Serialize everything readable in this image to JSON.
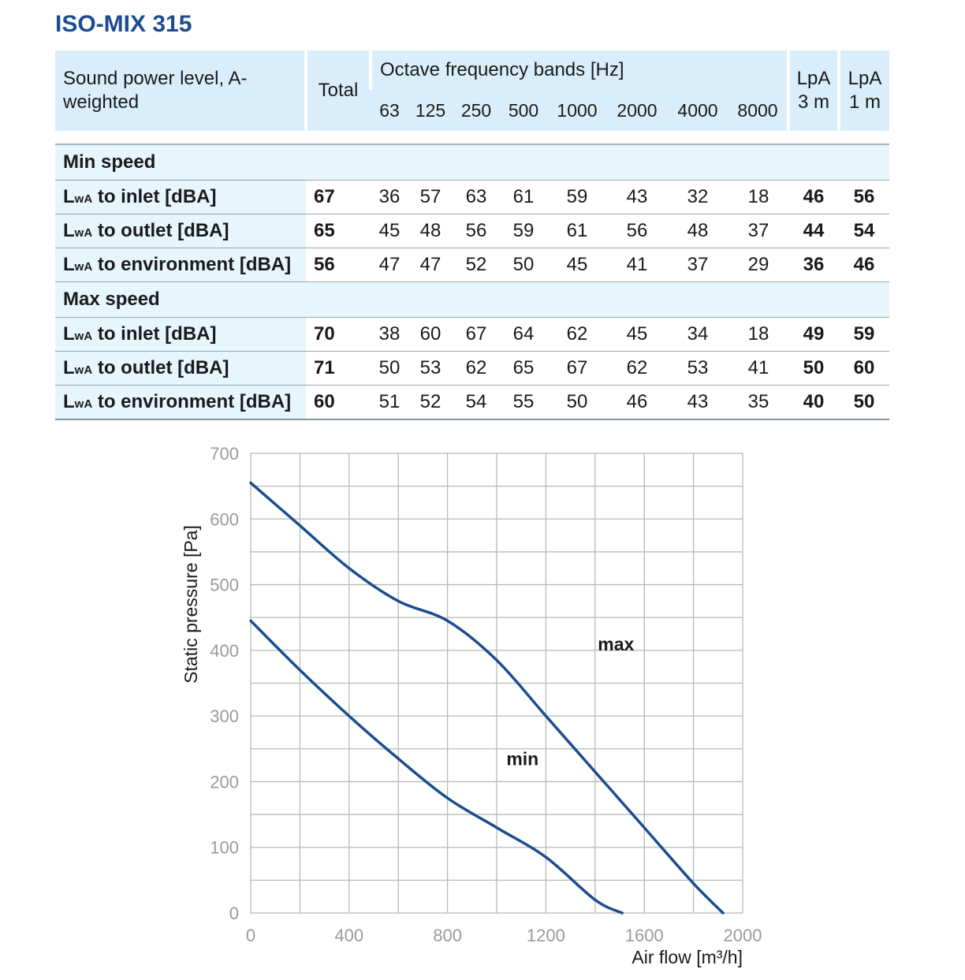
{
  "title": "ISO-MIX 315",
  "table": {
    "header_label": "Sound power level, A-weighted",
    "total_label": "Total",
    "bands_label": "Octave frequency bands [Hz]",
    "bands": [
      "63",
      "125",
      "250",
      "500",
      "1000",
      "2000",
      "4000",
      "8000"
    ],
    "lpa3_top": "LpA",
    "lpa3_bottom": "3 m",
    "lpa1_top": "LpA",
    "lpa1_bottom": "1 m",
    "groups": [
      {
        "name": "Min speed",
        "rows": [
          {
            "prefix": "L",
            "sub": "wA",
            "label": " to inlet [dBA]",
            "total": "67",
            "bands": [
              "36",
              "57",
              "63",
              "61",
              "59",
              "43",
              "32",
              "18"
            ],
            "lpa3": "46",
            "lpa1": "56"
          },
          {
            "prefix": "L",
            "sub": "wA",
            "label": " to outlet [dBA]",
            "total": "65",
            "bands": [
              "45",
              "48",
              "56",
              "59",
              "61",
              "56",
              "48",
              "37"
            ],
            "lpa3": "44",
            "lpa1": "54"
          },
          {
            "prefix": "L",
            "sub": "wA",
            "label": " to environment [dBA]",
            "total": "56",
            "bands": [
              "47",
              "47",
              "52",
              "50",
              "45",
              "41",
              "37",
              "29"
            ],
            "lpa3": "36",
            "lpa1": "46"
          }
        ]
      },
      {
        "name": "Max speed",
        "rows": [
          {
            "prefix": "L",
            "sub": "wA",
            "label": " to inlet [dBA]",
            "total": "70",
            "bands": [
              "38",
              "60",
              "67",
              "64",
              "62",
              "45",
              "34",
              "18"
            ],
            "lpa3": "49",
            "lpa1": "59"
          },
          {
            "prefix": "L",
            "sub": "wA",
            "label": " to outlet [dBA]",
            "total": "71",
            "bands": [
              "50",
              "53",
              "62",
              "65",
              "67",
              "62",
              "53",
              "41"
            ],
            "lpa3": "50",
            "lpa1": "60"
          },
          {
            "prefix": "L",
            "sub": "wA",
            "label": " to environment [dBA]",
            "total": "60",
            "bands": [
              "51",
              "52",
              "54",
              "55",
              "50",
              "46",
              "43",
              "35"
            ],
            "lpa3": "40",
            "lpa1": "50"
          }
        ]
      }
    ]
  },
  "chart_data": {
    "type": "line",
    "xlabel": "Air flow [m³/h]",
    "ylabel": "Static pressure [Pa]",
    "xlim": [
      0,
      2000
    ],
    "ylim": [
      0,
      700
    ],
    "xticks": [
      0,
      400,
      800,
      1200,
      1600,
      2000
    ],
    "yticks": [
      0,
      100,
      200,
      300,
      400,
      500,
      600,
      700
    ],
    "grid": true,
    "line_color": "#1b4d8f",
    "series": [
      {
        "name": "max",
        "x": [
          0,
          200,
          400,
          600,
          800,
          1000,
          1200,
          1400,
          1600,
          1800,
          1920
        ],
        "y": [
          655,
          590,
          525,
          475,
          445,
          385,
          300,
          215,
          130,
          45,
          0
        ]
      },
      {
        "name": "min",
        "x": [
          0,
          200,
          400,
          600,
          800,
          1000,
          1200,
          1400,
          1510
        ],
        "y": [
          445,
          370,
          300,
          235,
          175,
          130,
          85,
          20,
          0
        ]
      }
    ]
  }
}
